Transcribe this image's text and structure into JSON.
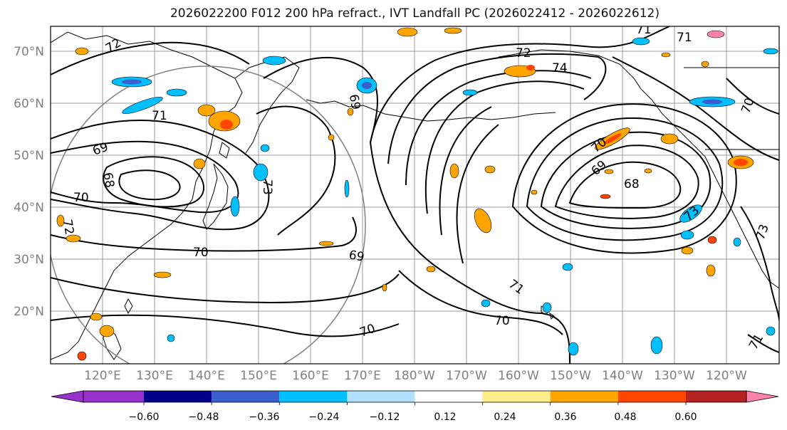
{
  "title": "2026022200 F012 200 hPa refract., IVT Landfall PC (2026022412 - 2026022612)",
  "map": {
    "lat_labels": [
      "70°N",
      "60°N",
      "50°N",
      "40°N",
      "30°N",
      "20°N"
    ],
    "lon_labels": [
      "120°E",
      "130°E",
      "140°E",
      "150°E",
      "160°E",
      "170°E",
      "180°W",
      "170°W",
      "160°W",
      "150°W",
      "140°W",
      "130°W",
      "120°W"
    ],
    "contour_labels": [
      "72",
      "71",
      "72",
      "74",
      "71",
      "71",
      "70",
      "69",
      "68",
      "70",
      "69",
      "73",
      "69",
      "70",
      "71",
      "70",
      "70",
      "69",
      "70",
      "68",
      "73",
      "72",
      "73",
      "71"
    ]
  },
  "colorbar": {
    "ticks": [
      "−0.60",
      "−0.48",
      "−0.36",
      "−0.24",
      "−0.12",
      "0.12",
      "0.24",
      "0.36",
      "0.48",
      "0.60"
    ],
    "colors": [
      "#9932CC",
      "#00008B",
      "#3A5FCD",
      "#00BFFF",
      "#B0E2FF",
      "#FFFFFF",
      "#FFEC8B",
      "#FFA500",
      "#FF4500",
      "#B22222",
      "#FF82AB"
    ]
  }
}
